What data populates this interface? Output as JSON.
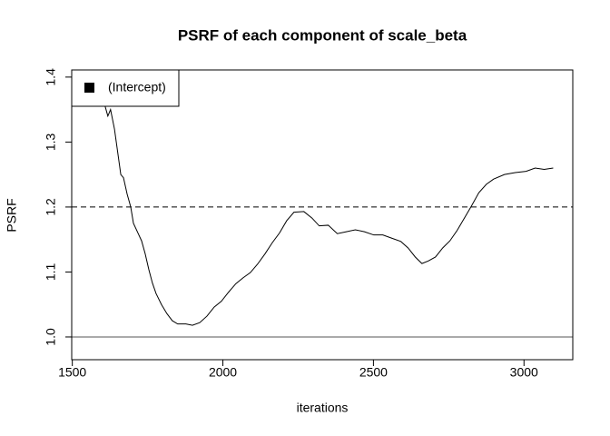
{
  "chart_data": {
    "type": "line",
    "title": "PSRF of each component of scale_beta",
    "x_label": "iterations",
    "y_label": "PSRF",
    "x": [
      1580,
      1609,
      1618,
      1627,
      1640,
      1652,
      1661,
      1670,
      1682,
      1694,
      1703,
      1718,
      1730,
      1742,
      1754,
      1766,
      1778,
      1796,
      1814,
      1832,
      1850,
      1877,
      1899,
      1923,
      1947,
      1971,
      1995,
      2019,
      2043,
      2067,
      2091,
      2115,
      2140,
      2164,
      2188,
      2212,
      2236,
      2269,
      2296,
      2320,
      2350,
      2380,
      2410,
      2440,
      2470,
      2501,
      2531,
      2561,
      2591,
      2615,
      2639,
      2661,
      2682,
      2706,
      2730,
      2754,
      2778,
      2802,
      2826,
      2850,
      2875,
      2899,
      2935,
      2971,
      3007,
      3037,
      3067,
      3097
    ],
    "series": [
      {
        "name": "(Intercept)",
        "color": "#000000",
        "values": [
          1.4,
          1.355,
          1.34,
          1.35,
          1.32,
          1.28,
          1.25,
          1.245,
          1.22,
          1.2,
          1.175,
          1.16,
          1.148,
          1.128,
          1.104,
          1.083,
          1.067,
          1.05,
          1.036,
          1.025,
          1.02,
          1.02,
          1.018,
          1.022,
          1.032,
          1.046,
          1.055,
          1.069,
          1.082,
          1.091,
          1.099,
          1.112,
          1.128,
          1.145,
          1.16,
          1.179,
          1.192,
          1.193,
          1.183,
          1.171,
          1.172,
          1.159,
          1.162,
          1.165,
          1.162,
          1.157,
          1.157,
          1.152,
          1.147,
          1.137,
          1.123,
          1.113,
          1.117,
          1.123,
          1.137,
          1.148,
          1.164,
          1.183,
          1.202,
          1.222,
          1.235,
          1.243,
          1.25,
          1.253,
          1.255,
          1.26,
          1.258,
          1.26
        ]
      }
    ],
    "xlim": [
      1498,
      3162
    ],
    "xticks": [
      1500,
      2000,
      2500,
      3000
    ],
    "ylim": [
      0.965,
      1.411
    ],
    "yticks": [
      {
        "value": 1,
        "label": "1.0"
      },
      1.1,
      1.2,
      1.3,
      1.4
    ],
    "reference_lines": [
      {
        "value": 1.2,
        "style": "dashed",
        "color": "#000000"
      },
      {
        "value": 1,
        "style": "solid",
        "color": "#555555"
      }
    ],
    "legend": "top-left"
  }
}
